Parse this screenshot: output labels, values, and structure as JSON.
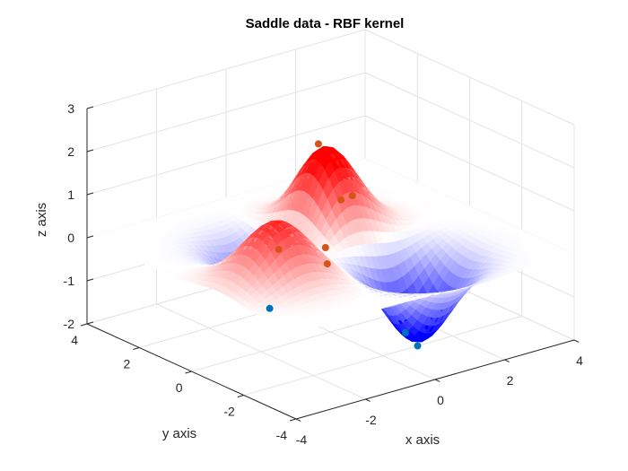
{
  "chart_data": {
    "type": "surface",
    "title": "Saddle data - RBF kernel",
    "xlabel": "x axis",
    "ylabel": "y axis",
    "zlabel": "z axis",
    "xlim": [
      -4,
      4
    ],
    "ylim": [
      -4,
      4
    ],
    "zlim": [
      -2,
      3
    ],
    "x_ticks": [
      -4,
      -2,
      0,
      2,
      4
    ],
    "y_ticks": [
      -4,
      -2,
      0,
      2,
      4
    ],
    "z_ticks": [
      -2,
      -1,
      0,
      1,
      2,
      3
    ],
    "grid": true,
    "colormap": "blue-white-red",
    "colors": {
      "negative": "#0000ff",
      "zero": "#ffffff",
      "positive": "#ff0000"
    },
    "surface_features": [
      {
        "name": "peak",
        "x": 0.5,
        "y": 1.0,
        "z": 2.1
      },
      {
        "name": "peak",
        "x": -2.3,
        "y": -1.0,
        "z": 1.4
      },
      {
        "name": "valley",
        "x": -1.0,
        "y": 1.0,
        "z": -1.6
      },
      {
        "name": "valley",
        "x": 1.0,
        "y": -2.0,
        "z": -1.9
      }
    ],
    "series": [
      {
        "marker": "dot",
        "color": "#d95319",
        "points": [
          {
            "x": 0.4,
            "y": 1.0,
            "z": 2.0
          },
          {
            "x": 0.3,
            "y": 0.0,
            "z": 1.0
          },
          {
            "x": 1.0,
            "y": 0.5,
            "z": 0.8
          },
          {
            "x": -2.4,
            "y": -1.2,
            "z": 0.8
          },
          {
            "x": -1.5,
            "y": -1.8,
            "z": 0.8
          },
          {
            "x": -1.6,
            "y": -2.0,
            "z": 0.5
          }
        ]
      },
      {
        "marker": "dot",
        "color": "#0072bd",
        "points": [
          {
            "x": -1.0,
            "y": 1.0,
            "z": -1.5
          },
          {
            "x": 0.8,
            "y": -1.8,
            "z": -1.7
          },
          {
            "x": 1.0,
            "y": -2.0,
            "z": -2.0
          }
        ]
      }
    ]
  }
}
